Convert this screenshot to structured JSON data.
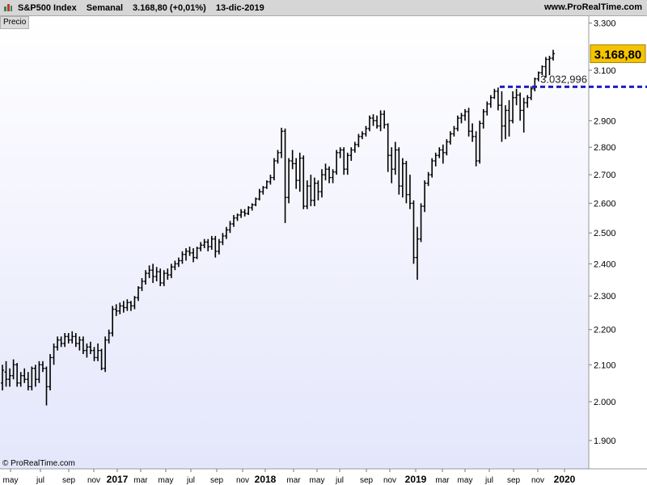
{
  "header": {
    "instrument": "S&P500 Index",
    "period": "Semanal",
    "quote": "3.168,80 (+0,01%)",
    "date": "13-dic-2019",
    "website": "www.ProRealTime.com"
  },
  "panel": {
    "label": "Precio"
  },
  "copyright": "© ProRealTime.com",
  "chart_data": {
    "type": "ohlc_bar",
    "x_labels": [
      "may",
      "jul",
      "sep",
      "nov",
      "2017",
      "mar",
      "may",
      "jul",
      "sep",
      "nov",
      "2018",
      "mar",
      "may",
      "jul",
      "sep",
      "nov",
      "2019",
      "mar",
      "may",
      "jul",
      "sep",
      "nov",
      "2020"
    ],
    "y_ticks": [
      "1.900",
      "2.000",
      "2.100",
      "2.200",
      "2.300",
      "2.400",
      "2.500",
      "2.600",
      "2.700",
      "2.800",
      "2.900",
      "3.100",
      "3.300"
    ],
    "ylim": [
      1830,
      3330
    ],
    "y_scale": "log",
    "last_price_label": "3.168,80",
    "reference_level": {
      "value": 3032.996,
      "label": "3.032,996"
    },
    "bars": [
      [
        2050,
        2100,
        2030,
        2085
      ],
      [
        2080,
        2110,
        2040,
        2060
      ],
      [
        2060,
        2090,
        2040,
        2070
      ],
      [
        2070,
        2115,
        2060,
        2100
      ],
      [
        2100,
        2105,
        2040,
        2050
      ],
      [
        2050,
        2080,
        2040,
        2070
      ],
      [
        2070,
        2090,
        2050,
        2060
      ],
      [
        2060,
        2080,
        2030,
        2040
      ],
      [
        2040,
        2095,
        2030,
        2090
      ],
      [
        2090,
        2100,
        2040,
        2060
      ],
      [
        2060,
        2110,
        2050,
        2100
      ],
      [
        2100,
        2110,
        2080,
        2090
      ],
      [
        2090,
        2095,
        1990,
        2040
      ],
      [
        2040,
        2130,
        2030,
        2120
      ],
      [
        2120,
        2160,
        2100,
        2150
      ],
      [
        2150,
        2180,
        2140,
        2170
      ],
      [
        2170,
        2180,
        2150,
        2160
      ],
      [
        2160,
        2190,
        2150,
        2180
      ],
      [
        2180,
        2190,
        2160,
        2170
      ],
      [
        2170,
        2195,
        2160,
        2180
      ],
      [
        2180,
        2190,
        2150,
        2160
      ],
      [
        2160,
        2180,
        2140,
        2170
      ],
      [
        2170,
        2180,
        2130,
        2140
      ],
      [
        2140,
        2160,
        2120,
        2150
      ],
      [
        2150,
        2165,
        2130,
        2140
      ],
      [
        2140,
        2150,
        2110,
        2120
      ],
      [
        2120,
        2160,
        2110,
        2140
      ],
      [
        2140,
        2145,
        2085,
        2090
      ],
      [
        2090,
        2180,
        2080,
        2170
      ],
      [
        2170,
        2200,
        2160,
        2190
      ],
      [
        2190,
        2270,
        2180,
        2260
      ],
      [
        2260,
        2275,
        2240,
        2255
      ],
      [
        2255,
        2280,
        2245,
        2270
      ],
      [
        2270,
        2285,
        2250,
        2265
      ],
      [
        2265,
        2290,
        2255,
        2280
      ],
      [
        2280,
        2285,
        2255,
        2270
      ],
      [
        2270,
        2300,
        2260,
        2295
      ],
      [
        2295,
        2330,
        2285,
        2325
      ],
      [
        2325,
        2355,
        2315,
        2345
      ],
      [
        2345,
        2380,
        2335,
        2370
      ],
      [
        2370,
        2395,
        2355,
        2380
      ],
      [
        2380,
        2400,
        2340,
        2360
      ],
      [
        2360,
        2390,
        2345,
        2375
      ],
      [
        2375,
        2385,
        2330,
        2340
      ],
      [
        2340,
        2380,
        2330,
        2370
      ],
      [
        2370,
        2385,
        2350,
        2365
      ],
      [
        2365,
        2400,
        2355,
        2390
      ],
      [
        2390,
        2410,
        2380,
        2400
      ],
      [
        2400,
        2420,
        2390,
        2410
      ],
      [
        2410,
        2440,
        2400,
        2430
      ],
      [
        2430,
        2450,
        2410,
        2440
      ],
      [
        2440,
        2455,
        2425,
        2435
      ],
      [
        2435,
        2450,
        2405,
        2420
      ],
      [
        2420,
        2455,
        2415,
        2450
      ],
      [
        2450,
        2470,
        2440,
        2460
      ],
      [
        2460,
        2480,
        2450,
        2470
      ],
      [
        2470,
        2480,
        2440,
        2455
      ],
      [
        2455,
        2490,
        2445,
        2480
      ],
      [
        2480,
        2490,
        2420,
        2440
      ],
      [
        2440,
        2480,
        2430,
        2470
      ],
      [
        2470,
        2500,
        2460,
        2490
      ],
      [
        2490,
        2520,
        2480,
        2510
      ],
      [
        2510,
        2540,
        2500,
        2530
      ],
      [
        2530,
        2560,
        2520,
        2550
      ],
      [
        2550,
        2565,
        2540,
        2560
      ],
      [
        2560,
        2580,
        2550,
        2570
      ],
      [
        2570,
        2580,
        2555,
        2565
      ],
      [
        2565,
        2590,
        2560,
        2585
      ],
      [
        2585,
        2600,
        2575,
        2595
      ],
      [
        2595,
        2620,
        2590,
        2615
      ],
      [
        2615,
        2650,
        2610,
        2640
      ],
      [
        2640,
        2660,
        2630,
        2655
      ],
      [
        2655,
        2680,
        2650,
        2675
      ],
      [
        2675,
        2700,
        2665,
        2690
      ],
      [
        2690,
        2760,
        2680,
        2750
      ],
      [
        2750,
        2790,
        2740,
        2780
      ],
      [
        2780,
        2873,
        2760,
        2860
      ],
      [
        2860,
        2870,
        2533,
        2620
      ],
      [
        2620,
        2760,
        2600,
        2750
      ],
      [
        2750,
        2790,
        2720,
        2740
      ],
      [
        2740,
        2760,
        2650,
        2680
      ],
      [
        2680,
        2780,
        2640,
        2760
      ],
      [
        2760,
        2770,
        2580,
        2590
      ],
      [
        2590,
        2680,
        2580,
        2660
      ],
      [
        2660,
        2700,
        2590,
        2610
      ],
      [
        2610,
        2690,
        2590,
        2670
      ],
      [
        2670,
        2680,
        2610,
        2640
      ],
      [
        2640,
        2720,
        2620,
        2700
      ],
      [
        2700,
        2740,
        2680,
        2720
      ],
      [
        2720,
        2730,
        2670,
        2690
      ],
      [
        2690,
        2720,
        2670,
        2710
      ],
      [
        2710,
        2790,
        2700,
        2780
      ],
      [
        2780,
        2800,
        2760,
        2790
      ],
      [
        2790,
        2800,
        2700,
        2720
      ],
      [
        2720,
        2780,
        2700,
        2770
      ],
      [
        2770,
        2800,
        2750,
        2790
      ],
      [
        2790,
        2820,
        2780,
        2810
      ],
      [
        2810,
        2850,
        2800,
        2840
      ],
      [
        2840,
        2860,
        2830,
        2850
      ],
      [
        2850,
        2880,
        2840,
        2870
      ],
      [
        2870,
        2920,
        2860,
        2910
      ],
      [
        2910,
        2925,
        2880,
        2900
      ],
      [
        2900,
        2920,
        2870,
        2880
      ],
      [
        2880,
        2940,
        2860,
        2925
      ],
      [
        2925,
        2940,
        2870,
        2885
      ],
      [
        2885,
        2890,
        2710,
        2770
      ],
      [
        2770,
        2800,
        2670,
        2720
      ],
      [
        2720,
        2820,
        2700,
        2790
      ],
      [
        2790,
        2800,
        2630,
        2660
      ],
      [
        2660,
        2760,
        2620,
        2740
      ],
      [
        2740,
        2750,
        2600,
        2630
      ],
      [
        2630,
        2700,
        2580,
        2600
      ],
      [
        2600,
        2610,
        2400,
        2420
      ],
      [
        2420,
        2520,
        2350,
        2480
      ],
      [
        2480,
        2600,
        2470,
        2590
      ],
      [
        2590,
        2680,
        2570,
        2670
      ],
      [
        2670,
        2710,
        2660,
        2700
      ],
      [
        2700,
        2760,
        2690,
        2750
      ],
      [
        2750,
        2780,
        2730,
        2770
      ],
      [
        2770,
        2800,
        2760,
        2790
      ],
      [
        2790,
        2810,
        2740,
        2780
      ],
      [
        2780,
        2830,
        2770,
        2820
      ],
      [
        2820,
        2860,
        2810,
        2850
      ],
      [
        2850,
        2880,
        2840,
        2870
      ],
      [
        2870,
        2920,
        2860,
        2910
      ],
      [
        2910,
        2930,
        2890,
        2920
      ],
      [
        2920,
        2945,
        2900,
        2935
      ],
      [
        2935,
        2950,
        2840,
        2860
      ],
      [
        2860,
        2890,
        2820,
        2840
      ],
      [
        2840,
        2860,
        2730,
        2750
      ],
      [
        2750,
        2900,
        2740,
        2890
      ],
      [
        2890,
        2945,
        2870,
        2935
      ],
      [
        2935,
        2975,
        2920,
        2965
      ],
      [
        2965,
        3000,
        2950,
        2990
      ],
      [
        2990,
        3025,
        2985,
        3015
      ],
      [
        3015,
        3030,
        2940,
        2960
      ],
      [
        2960,
        3015,
        2820,
        2880
      ],
      [
        2880,
        2960,
        2830,
        2940
      ],
      [
        2940,
        2980,
        2840,
        2900
      ],
      [
        2900,
        3015,
        2890,
        2990
      ],
      [
        2990,
        3025,
        2960,
        3000
      ],
      [
        3000,
        3010,
        2900,
        2940
      ],
      [
        2940,
        2990,
        2855,
        2970
      ],
      [
        2970,
        3000,
        2950,
        2990
      ],
      [
        2990,
        3035,
        2980,
        3025
      ],
      [
        3025,
        3070,
        3015,
        3065
      ],
      [
        3065,
        3095,
        3055,
        3090
      ],
      [
        3090,
        3120,
        3080,
        3115
      ],
      [
        3115,
        3155,
        3070,
        3145
      ],
      [
        3145,
        3160,
        3080,
        3150
      ],
      [
        3150,
        3185,
        3140,
        3168.8
      ]
    ]
  }
}
